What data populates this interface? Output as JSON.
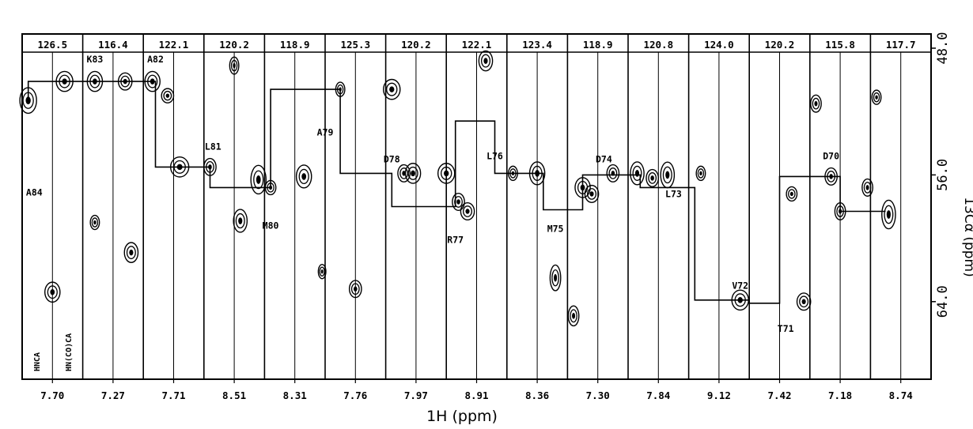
{
  "chart_data": {
    "type": "scatter",
    "description_kind": "NMR sequential-walk strip plot (HNCA / HN(CO)CA)",
    "xlabel": "1H (ppm)",
    "ylabel": "13Cα (ppm)",
    "y_axis": {
      "min": 48.0,
      "max": 68.5,
      "reversed": true,
      "ticks": [
        "48.0",
        "56.0",
        "64.0"
      ]
    },
    "strip_labels": [
      "126.5",
      "116.4",
      "122.1",
      "120.2",
      "118.9",
      "125.3",
      "120.2",
      "122.1",
      "123.4",
      "118.9",
      "120.8",
      "124.0",
      "120.2",
      "115.8",
      "117.7"
    ],
    "x_tick_labels": [
      "7.70",
      "7.27",
      "7.71",
      "8.51",
      "8.31",
      "7.76",
      "7.97",
      "8.91",
      "8.36",
      "7.30",
      "7.84",
      "9.12",
      "7.42",
      "7.18",
      "8.74"
    ],
    "experiment_labels": [
      "HNCA",
      "HN(CO)CA"
    ],
    "residue_labels": [
      "A84",
      "K83",
      "A82",
      "L81",
      "M80",
      "A79",
      "D78",
      "R77",
      "L76",
      "M75",
      "D74",
      "L73",
      "V72",
      "T71",
      "D70"
    ],
    "sequential_path_ppm": [
      [
        0.2,
        51.2
      ],
      [
        0.2,
        50.1
      ],
      [
        4.4,
        50.1
      ],
      [
        4.4,
        55.5
      ],
      [
        6.2,
        55.5
      ],
      [
        6.2,
        56.8
      ],
      [
        8.2,
        56.8
      ],
      [
        8.2,
        50.6
      ],
      [
        10.5,
        50.6
      ],
      [
        10.5,
        55.9
      ],
      [
        12.2,
        55.9
      ],
      [
        12.2,
        58.0
      ],
      [
        14.3,
        58.0
      ],
      [
        14.3,
        52.6
      ],
      [
        15.6,
        52.6
      ],
      [
        15.6,
        55.9
      ],
      [
        17.2,
        55.9
      ],
      [
        17.2,
        58.2
      ],
      [
        18.5,
        58.2
      ],
      [
        18.5,
        56.0
      ],
      [
        20.4,
        56.0
      ],
      [
        20.4,
        56.8
      ],
      [
        22.2,
        56.8
      ],
      [
        22.2,
        63.9
      ],
      [
        24.0,
        63.9
      ],
      [
        24.0,
        64.1
      ],
      [
        25.0,
        64.1
      ],
      [
        25.0,
        56.1
      ],
      [
        27.0,
        56.1
      ],
      [
        27.0,
        58.3
      ],
      [
        28.5,
        58.3
      ]
    ],
    "peaks_ppm": [
      {
        "x": 0.2,
        "y": 51.3,
        "w": 0.55,
        "h": 0.9
      },
      {
        "x": 1.0,
        "y": 63.4,
        "w": 0.5,
        "h": 0.7
      },
      {
        "x": 1.4,
        "y": 50.1,
        "w": 0.55,
        "h": 0.7
      },
      {
        "x": 2.4,
        "y": 50.1,
        "w": 0.5,
        "h": 0.7
      },
      {
        "x": 3.4,
        "y": 50.1,
        "w": 0.45,
        "h": 0.6
      },
      {
        "x": 2.4,
        "y": 59.0,
        "w": 0.3,
        "h": 0.5
      },
      {
        "x": 3.6,
        "y": 60.9,
        "w": 0.45,
        "h": 0.7
      },
      {
        "x": 4.3,
        "y": 50.1,
        "w": 0.5,
        "h": 0.7
      },
      {
        "x": 5.2,
        "y": 55.5,
        "w": 0.6,
        "h": 0.7
      },
      {
        "x": 4.8,
        "y": 51.0,
        "w": 0.4,
        "h": 0.5
      },
      {
        "x": 6.2,
        "y": 55.5,
        "w": 0.4,
        "h": 0.6
      },
      {
        "x": 7.2,
        "y": 58.9,
        "w": 0.45,
        "h": 0.8
      },
      {
        "x": 7.0,
        "y": 49.1,
        "w": 0.3,
        "h": 0.6
      },
      {
        "x": 7.8,
        "y": 56.3,
        "w": 0.5,
        "h": 1.0
      },
      {
        "x": 8.2,
        "y": 56.8,
        "w": 0.35,
        "h": 0.5
      },
      {
        "x": 9.3,
        "y": 56.1,
        "w": 0.5,
        "h": 0.8
      },
      {
        "x": 9.9,
        "y": 62.1,
        "w": 0.25,
        "h": 0.5
      },
      {
        "x": 11.0,
        "y": 63.2,
        "w": 0.4,
        "h": 0.6
      },
      {
        "x": 10.5,
        "y": 50.6,
        "w": 0.3,
        "h": 0.5
      },
      {
        "x": 12.2,
        "y": 50.6,
        "w": 0.55,
        "h": 0.7
      },
      {
        "x": 12.6,
        "y": 55.9,
        "w": 0.4,
        "h": 0.6
      },
      {
        "x": 12.9,
        "y": 55.9,
        "w": 0.5,
        "h": 0.7
      },
      {
        "x": 14.0,
        "y": 55.9,
        "w": 0.55,
        "h": 0.7
      },
      {
        "x": 14.4,
        "y": 57.7,
        "w": 0.4,
        "h": 0.6
      },
      {
        "x": 14.7,
        "y": 58.3,
        "w": 0.45,
        "h": 0.6
      },
      {
        "x": 15.3,
        "y": 48.8,
        "w": 0.45,
        "h": 0.7
      },
      {
        "x": 17.0,
        "y": 55.9,
        "w": 0.5,
        "h": 0.8
      },
      {
        "x": 16.2,
        "y": 55.9,
        "w": 0.3,
        "h": 0.5
      },
      {
        "x": 18.5,
        "y": 56.8,
        "w": 0.5,
        "h": 0.7
      },
      {
        "x": 18.8,
        "y": 57.2,
        "w": 0.45,
        "h": 0.6
      },
      {
        "x": 17.6,
        "y": 62.5,
        "w": 0.35,
        "h": 0.9
      },
      {
        "x": 18.2,
        "y": 64.9,
        "w": 0.35,
        "h": 0.7
      },
      {
        "x": 19.5,
        "y": 55.9,
        "w": 0.4,
        "h": 0.6
      },
      {
        "x": 20.3,
        "y": 55.9,
        "w": 0.45,
        "h": 0.8
      },
      {
        "x": 20.8,
        "y": 56.2,
        "w": 0.4,
        "h": 0.6
      },
      {
        "x": 21.3,
        "y": 56.0,
        "w": 0.45,
        "h": 0.9
      },
      {
        "x": 22.4,
        "y": 55.9,
        "w": 0.3,
        "h": 0.5
      },
      {
        "x": 23.7,
        "y": 63.9,
        "w": 0.55,
        "h": 0.7
      },
      {
        "x": 25.4,
        "y": 57.2,
        "w": 0.35,
        "h": 0.5
      },
      {
        "x": 25.8,
        "y": 64.0,
        "w": 0.45,
        "h": 0.6
      },
      {
        "x": 26.2,
        "y": 51.5,
        "w": 0.35,
        "h": 0.6
      },
      {
        "x": 26.7,
        "y": 56.1,
        "w": 0.4,
        "h": 0.6
      },
      {
        "x": 27.0,
        "y": 58.3,
        "w": 0.35,
        "h": 0.6
      },
      {
        "x": 27.9,
        "y": 56.8,
        "w": 0.35,
        "h": 0.6
      },
      {
        "x": 28.6,
        "y": 58.5,
        "w": 0.45,
        "h": 1.0
      },
      {
        "x": 28.2,
        "y": 51.1,
        "w": 0.3,
        "h": 0.5
      }
    ]
  }
}
